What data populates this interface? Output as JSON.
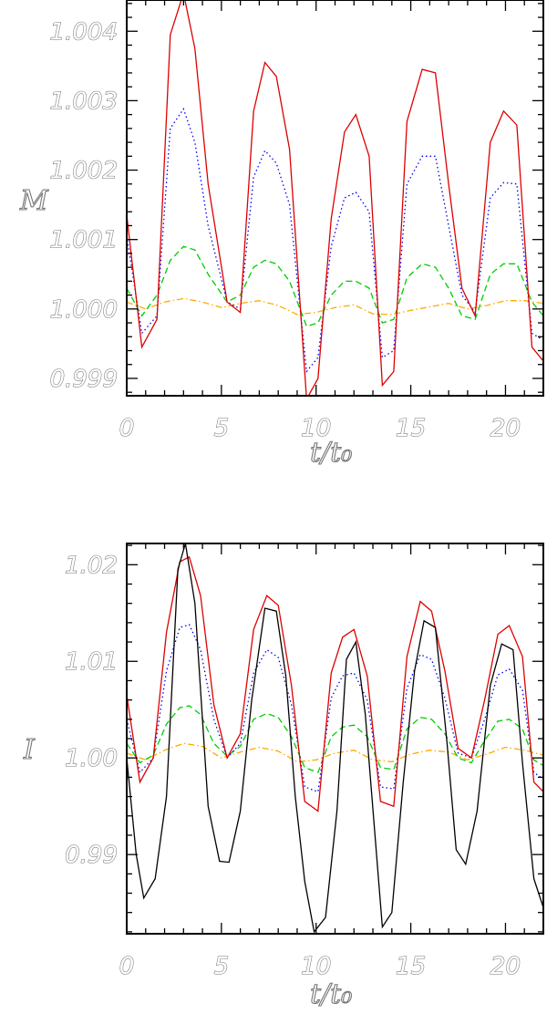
{
  "chart_data": [
    {
      "type": "line",
      "ylabel": "M",
      "xlabel": "t/t₀",
      "xlim": [
        0,
        22
      ],
      "ylim": [
        0.99875,
        1.00445
      ],
      "x_ticks": [
        "0",
        "5",
        "10",
        "15",
        "20"
      ],
      "x_tick_values": [
        0,
        5,
        10,
        15,
        20
      ],
      "y_ticks": [
        "0.999",
        "1.000",
        "1.001",
        "1.002",
        "1.003",
        "1.004"
      ],
      "y_tick_values": [
        0.999,
        1.0,
        1.001,
        1.002,
        1.003,
        1.004
      ],
      "series": [
        {
          "color": "#dd0000",
          "dash": "solid",
          "x": [
            0,
            0.8,
            1.6,
            2.3,
            3.0,
            3.6,
            4.3,
            5.3,
            6.0,
            6.7,
            7.3,
            7.9,
            8.6,
            9.5,
            10.1,
            10.8,
            11.5,
            12.1,
            12.8,
            13.5,
            14.1,
            14.8,
            15.6,
            16.3,
            17.0,
            17.7,
            18.4,
            19.2,
            19.9,
            20.6,
            21.4,
            22.0
          ],
          "y": [
            1.00135,
            0.99945,
            0.99985,
            1.00395,
            1.00455,
            1.00375,
            1.0018,
            1.0001,
            0.99995,
            1.00285,
            1.00355,
            1.00335,
            1.0023,
            0.9987,
            0.999,
            1.0013,
            1.00255,
            1.0028,
            1.0022,
            0.9989,
            0.9991,
            1.0027,
            1.00345,
            1.0034,
            1.0018,
            1.0003,
            0.9999,
            1.0024,
            1.00285,
            1.00265,
            0.99945,
            0.99925
          ]
        },
        {
          "color": "#0000ee",
          "dash": "dotted",
          "x": [
            0,
            0.8,
            1.6,
            2.3,
            3.0,
            3.6,
            4.3,
            5.3,
            6.0,
            6.7,
            7.3,
            7.9,
            8.6,
            9.5,
            10.1,
            10.8,
            11.5,
            12.1,
            12.8,
            13.5,
            14.1,
            14.8,
            15.6,
            16.3,
            17.0,
            17.7,
            18.4,
            19.2,
            19.9,
            20.6,
            21.4,
            22.0
          ],
          "y": [
            1.00105,
            0.99965,
            0.9999,
            1.0026,
            1.00288,
            1.0024,
            1.0012,
            1.0001,
            1.0,
            1.0019,
            1.00228,
            1.0021,
            1.0015,
            0.9991,
            0.9993,
            1.0009,
            1.0016,
            1.00168,
            1.0014,
            0.9993,
            0.9994,
            1.0018,
            1.0022,
            1.0022,
            1.0012,
            1.0002,
            0.99995,
            1.0016,
            1.00182,
            1.0018,
            0.99965,
            0.99955
          ]
        },
        {
          "color": "#00cc00",
          "dash": "dashed",
          "x": [
            0,
            0.8,
            1.6,
            2.3,
            3.0,
            3.6,
            4.3,
            5.3,
            6.0,
            6.7,
            7.3,
            7.9,
            8.6,
            9.5,
            10.1,
            10.8,
            11.5,
            12.1,
            12.8,
            13.5,
            14.1,
            14.8,
            15.6,
            16.3,
            17.0,
            17.7,
            18.4,
            19.2,
            19.9,
            20.6,
            21.4,
            22.0
          ],
          "y": [
            1.0003,
            0.9999,
            1.0002,
            1.0007,
            1.0009,
            1.00085,
            1.0005,
            1.0001,
            1.0002,
            1.0006,
            1.0007,
            1.00065,
            1.0004,
            0.99975,
            0.9998,
            1.0002,
            1.0004,
            1.0004,
            1.0003,
            0.9998,
            0.99985,
            1.00045,
            1.00065,
            1.0006,
            1.0003,
            0.9999,
            0.99985,
            1.0005,
            1.00065,
            1.00065,
            1.0001,
            0.9999
          ]
        },
        {
          "color": "#ffaa00",
          "dash": "dashdot",
          "x": [
            0,
            1,
            2,
            3,
            4,
            5,
            6,
            7,
            8,
            9,
            10,
            11,
            12,
            13,
            14,
            15,
            16,
            17,
            18,
            19,
            20,
            21,
            22
          ],
          "y": [
            1.0001,
            1.0,
            1.0001,
            1.00015,
            1.0001,
            1.00002,
            1.00008,
            1.00012,
            1.00005,
            0.99992,
            0.99995,
            1.00002,
            1.00006,
            0.99993,
            0.99992,
            0.99998,
            1.00003,
            1.00008,
            1.0,
            1.00005,
            1.00012,
            1.00012,
            1.00008
          ]
        }
      ]
    },
    {
      "type": "line",
      "ylabel": "I",
      "xlabel": "t/t₀",
      "xlim": [
        0,
        22
      ],
      "ylim": [
        0.9818,
        1.0222
      ],
      "x_ticks": [
        "0",
        "5",
        "10",
        "15",
        "20"
      ],
      "x_tick_values": [
        0,
        5,
        10,
        15,
        20
      ],
      "y_ticks": [
        "0.99",
        "1.00",
        "1.01",
        "1.02"
      ],
      "y_tick_values": [
        0.99,
        1.0,
        1.01,
        1.02
      ],
      "series": [
        {
          "color": "#000000",
          "dash": "solid",
          "x": [
            0,
            0.5,
            0.9,
            1.5,
            2.1,
            2.7,
            3.1,
            3.6,
            4.3,
            4.9,
            5.4,
            6.0,
            6.6,
            7.3,
            7.9,
            8.4,
            8.9,
            9.4,
            9.9,
            10.5,
            11.1,
            11.6,
            12.1,
            12.6,
            13.5,
            14.0,
            14.6,
            15.2,
            15.7,
            16.3,
            16.9,
            17.4,
            17.9,
            18.5,
            19.2,
            19.8,
            20.4,
            20.9,
            21.5,
            22.0
          ],
          "y": [
            1.0,
            0.99,
            0.9855,
            0.9875,
            0.996,
            1.0195,
            1.0222,
            1.016,
            0.995,
            0.9893,
            0.9892,
            0.9945,
            1.006,
            1.0155,
            1.0152,
            1.0085,
            0.996,
            0.9872,
            0.982,
            0.9835,
            0.9945,
            1.0102,
            1.012,
            1.0045,
            0.9825,
            0.984,
            0.9975,
            1.009,
            1.0142,
            1.0135,
            1.0018,
            0.9905,
            0.989,
            0.9945,
            1.0075,
            1.0118,
            1.0112,
            0.9995,
            0.9875,
            0.9845
          ]
        },
        {
          "color": "#dd0000",
          "dash": "solid",
          "x": [
            0,
            0.7,
            1.4,
            2.1,
            2.8,
            3.3,
            3.9,
            4.6,
            5.3,
            6.0,
            6.7,
            7.4,
            8.0,
            8.7,
            9.4,
            10.1,
            10.8,
            11.4,
            12.0,
            12.7,
            13.4,
            14.1,
            14.8,
            15.5,
            16.1,
            16.8,
            17.5,
            18.2,
            18.9,
            19.6,
            20.2,
            20.9,
            21.5,
            22.0
          ],
          "y": [
            1.0065,
            0.9975,
            1.0,
            1.013,
            1.0203,
            1.0208,
            1.0168,
            1.0055,
            1.0,
            1.0025,
            1.0133,
            1.0168,
            1.0158,
            1.0075,
            0.9955,
            0.9945,
            1.0088,
            1.0125,
            1.0133,
            1.0085,
            0.9955,
            0.995,
            1.0105,
            1.0162,
            1.0152,
            1.009,
            1.001,
            1.0,
            1.006,
            1.0128,
            1.0137,
            1.0105,
            0.9975,
            0.9965
          ]
        },
        {
          "color": "#0000ee",
          "dash": "dotted",
          "x": [
            0,
            0.7,
            1.4,
            2.1,
            2.8,
            3.3,
            3.9,
            4.6,
            5.3,
            6.0,
            6.7,
            7.4,
            8.0,
            8.7,
            9.4,
            10.1,
            10.8,
            11.4,
            12.0,
            12.7,
            13.4,
            14.1,
            14.8,
            15.5,
            16.1,
            16.8,
            17.5,
            18.2,
            18.9,
            19.6,
            20.2,
            20.9,
            21.5,
            22.0
          ],
          "y": [
            1.004,
            0.9985,
            1.0,
            1.009,
            1.0135,
            1.0138,
            1.0112,
            1.004,
            1.0,
            1.0015,
            1.0088,
            1.0112,
            1.0104,
            1.0055,
            0.997,
            0.9965,
            1.0062,
            1.0085,
            1.0088,
            1.006,
            0.997,
            0.9968,
            1.0072,
            1.0107,
            1.0102,
            1.0062,
            1.0005,
            1.0,
            1.004,
            1.0086,
            1.0092,
            1.007,
            0.9985,
            0.9978
          ]
        },
        {
          "color": "#00cc00",
          "dash": "dashed",
          "x": [
            0,
            0.7,
            1.4,
            2.1,
            2.8,
            3.3,
            3.9,
            4.6,
            5.3,
            6.0,
            6.7,
            7.4,
            8.0,
            8.7,
            9.4,
            10.1,
            10.8,
            11.4,
            12.0,
            12.7,
            13.4,
            14.1,
            14.8,
            15.5,
            16.1,
            16.8,
            17.5,
            18.2,
            18.9,
            19.6,
            20.2,
            20.9,
            21.5,
            22.0
          ],
          "y": [
            1.0015,
            0.9995,
            1.0003,
            1.0035,
            1.0052,
            1.0054,
            1.0045,
            1.0015,
            1.0002,
            1.0012,
            1.004,
            1.0046,
            1.0042,
            1.0022,
            0.999,
            0.9985,
            1.0022,
            1.0032,
            1.0034,
            1.0022,
            0.999,
            0.9988,
            1.003,
            1.0042,
            1.004,
            1.0025,
            1.0,
            0.9995,
            1.0018,
            1.0038,
            1.004,
            1.003,
            0.9998,
            0.9992
          ]
        },
        {
          "color": "#ffaa00",
          "dash": "dashdot",
          "x": [
            0,
            1,
            2,
            3,
            4,
            5,
            6,
            7,
            8,
            9,
            10,
            11,
            12,
            13,
            14,
            15,
            16,
            17,
            18,
            19,
            20,
            21,
            22
          ],
          "y": [
            1.0005,
            0.9998,
            1.0008,
            1.0015,
            1.0012,
            1.0,
            1.0006,
            1.0011,
            1.0007,
            0.9996,
            0.9998,
            1.0005,
            1.0008,
            0.9998,
            0.9996,
            1.0004,
            1.0008,
            1.0006,
            0.9998,
            1.0004,
            1.0011,
            1.0008,
            1.0003
          ]
        }
      ]
    }
  ]
}
